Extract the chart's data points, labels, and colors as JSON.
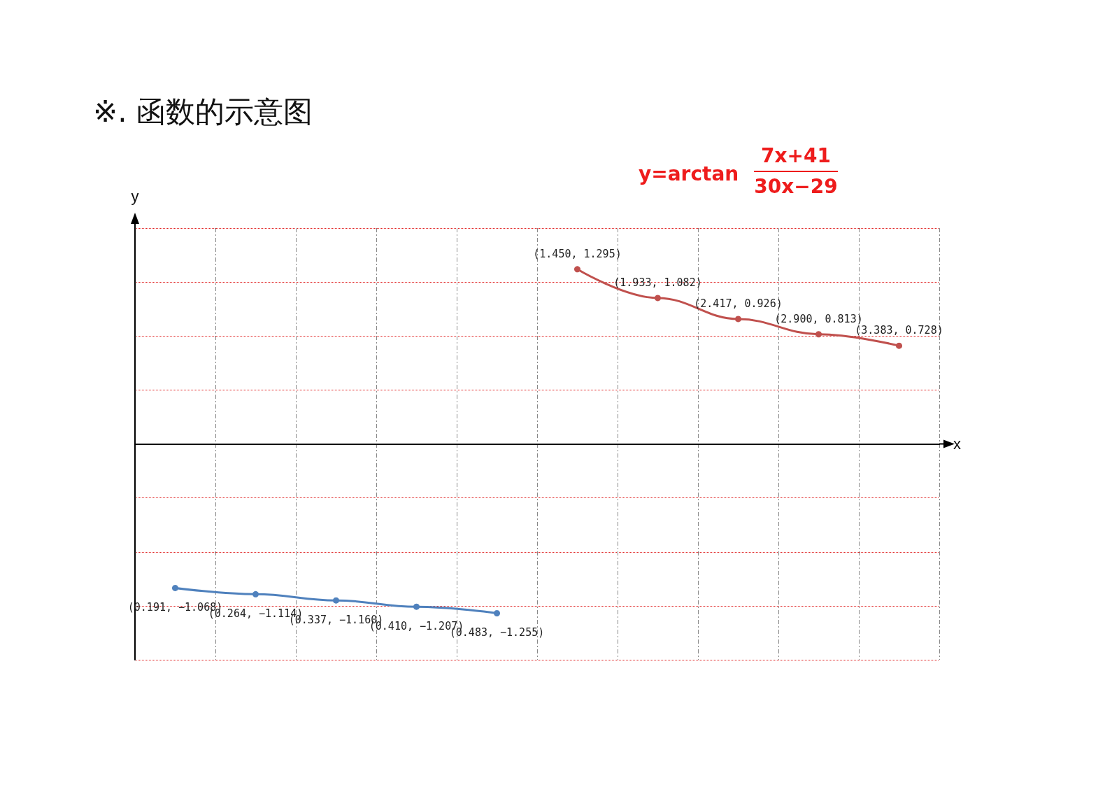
{
  "chart_data": {
    "type": "line",
    "title": "※. 函数的示意图",
    "xlabel": "x",
    "ylabel": "y",
    "annotations": [
      "y=arctan",
      "7x+41",
      "30x−29"
    ],
    "categories": [
      null,
      null,
      null,
      null,
      null,
      null,
      null,
      null,
      null,
      null
    ],
    "ylim": [
      -1.6,
      1.6
    ],
    "yticks": [
      {
        "value": -1.6,
        "label": null
      },
      {
        "value": -1.2,
        "label": null
      },
      {
        "value": -0.8,
        "label": null
      },
      {
        "value": -0.4,
        "label": null
      },
      {
        "value": 0,
        "label": null
      },
      {
        "value": 0.4,
        "label": null
      },
      {
        "value": 0.8,
        "label": null
      },
      {
        "value": 1.2,
        "label": null
      },
      {
        "value": 1.6,
        "label": null
      }
    ],
    "grid": true,
    "marker": "circle",
    "line_style": "solid",
    "series": [
      {
        "color": "#4f81bd",
        "values": [
          -1.068,
          -1.114,
          -1.16,
          -1.207,
          -1.255,
          null,
          null,
          null,
          null,
          null
        ],
        "value_labels": [
          "(0.191, −1.068)",
          "(0.264, −1.114)",
          "(0.337, −1.160)",
          "(0.410, −1.207)",
          "(0.483, −1.255)",
          null,
          null,
          null,
          null,
          null
        ]
      },
      {
        "color": "#c0504d",
        "values": [
          null,
          null,
          null,
          null,
          null,
          1.295,
          1.082,
          0.926,
          0.813,
          0.728
        ],
        "value_labels": [
          null,
          null,
          null,
          null,
          null,
          "(1.450, 1.295)",
          "(1.933, 1.082)",
          "(2.417, 0.926)",
          "(2.900, 0.813)",
          "(3.383, 0.728)"
        ]
      }
    ]
  }
}
